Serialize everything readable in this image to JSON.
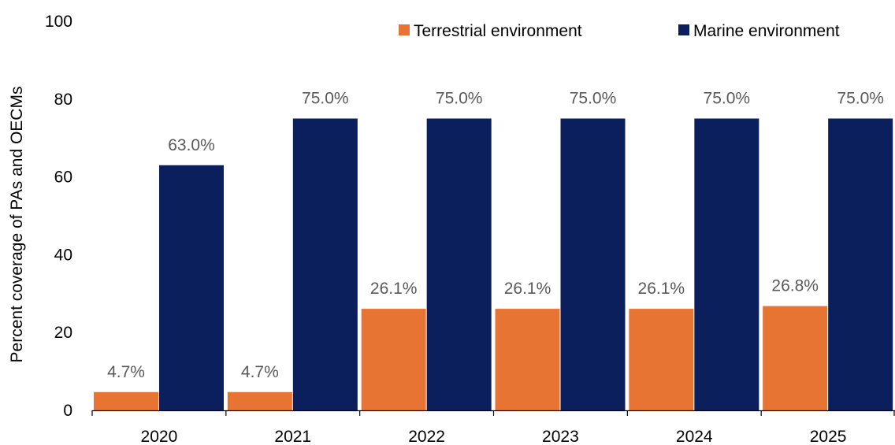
{
  "chart_data": {
    "type": "bar",
    "categories": [
      "2020",
      "2021",
      "2022",
      "2023",
      "2024",
      "2025"
    ],
    "series": [
      {
        "name": "Terrestrial environment",
        "color": "#E87434",
        "values": [
          4.7,
          4.7,
          26.1,
          26.1,
          26.1,
          26.8
        ],
        "labels": [
          "4.7%",
          "4.7%",
          "26.1%",
          "26.1%",
          "26.1%",
          "26.8%"
        ]
      },
      {
        "name": "Marine environment",
        "color": "#0B1F5C",
        "values": [
          63.0,
          75.0,
          75.0,
          75.0,
          75.0,
          75.0
        ],
        "labels": [
          "63.0%",
          "75.0%",
          "75.0%",
          "75.0%",
          "75.0%",
          "75.0%"
        ]
      }
    ],
    "title": "",
    "xlabel": "",
    "ylabel": "Percent coverage of PAs and OECMs",
    "ylim": [
      0,
      100
    ],
    "yticks": [
      0,
      20,
      40,
      60,
      80,
      100
    ],
    "grid": false,
    "legend_position": "top-right"
  }
}
